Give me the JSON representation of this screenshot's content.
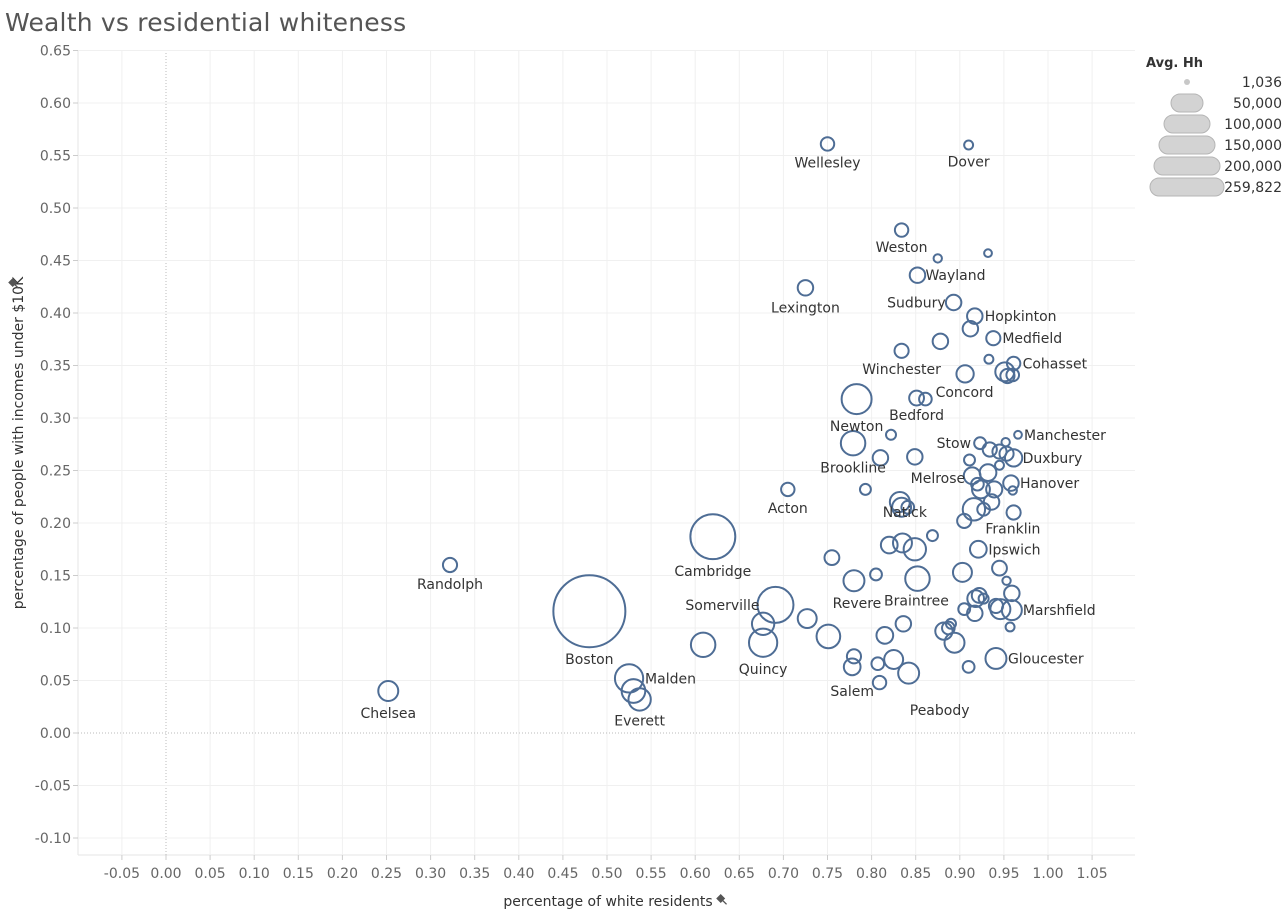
{
  "title": "Wealth vs residential whiteness",
  "chart_data": {
    "type": "scatter",
    "title": "Wealth vs residential whiteness",
    "xlabel": "percentage of white residents",
    "ylabel": "percentage of people with incomes under $10K",
    "xlim": [
      -0.1,
      1.1
    ],
    "ylim": [
      -0.12,
      0.67
    ],
    "x_ticks": [
      "-0.05",
      "0.00",
      "0.05",
      "0.10",
      "0.15",
      "0.20",
      "0.25",
      "0.30",
      "0.35",
      "0.40",
      "0.45",
      "0.50",
      "0.55",
      "0.60",
      "0.65",
      "0.70",
      "0.75",
      "0.80",
      "0.85",
      "0.90",
      "0.95",
      "1.00",
      "1.05"
    ],
    "y_ticks": [
      "0.65",
      "0.60",
      "0.55",
      "0.50",
      "0.45",
      "0.40",
      "0.35",
      "0.30",
      "0.25",
      "0.20",
      "0.15",
      "0.10",
      "0.05",
      "0.00",
      "-0.05",
      "-0.10"
    ],
    "grid": true,
    "mark_color": "#4e6d95",
    "legend": {
      "title": "Avg. Hh",
      "placement": "top-right",
      "entries": [
        "1,036",
        "50,000",
        "100,000",
        "150,000",
        "200,000",
        "259,822"
      ],
      "values": [
        1036,
        50000,
        100000,
        150000,
        200000,
        259822
      ]
    },
    "points": [
      {
        "label": "Wellesley",
        "x": 0.75,
        "y": 0.561,
        "size": 9000
      },
      {
        "label": "Dover",
        "x": 0.91,
        "y": 0.56,
        "size": 4000
      },
      {
        "label": "",
        "x": 0.834,
        "y": 0.479,
        "size": 9000
      },
      {
        "label": "Weston",
        "x": 0.834,
        "y": 0.479,
        "size": 0
      },
      {
        "label": "",
        "x": 0.875,
        "y": 0.452,
        "size": 3500
      },
      {
        "label": "",
        "x": 0.932,
        "y": 0.457,
        "size": 3000
      },
      {
        "label": "Wayland",
        "x": 0.852,
        "y": 0.436,
        "size": 12000
      },
      {
        "label": "Lexington",
        "x": 0.725,
        "y": 0.424,
        "size": 12000
      },
      {
        "label": "Sudbury",
        "x": 0.893,
        "y": 0.41,
        "size": 12000
      },
      {
        "label": "Hopkinton",
        "x": 0.917,
        "y": 0.397,
        "size": 12000
      },
      {
        "label": "",
        "x": 0.912,
        "y": 0.385,
        "size": 12000
      },
      {
        "label": "Medfield",
        "x": 0.938,
        "y": 0.376,
        "size": 10000
      },
      {
        "label": "",
        "x": 0.878,
        "y": 0.373,
        "size": 12000
      },
      {
        "label": "Winchester",
        "x": 0.834,
        "y": 0.364,
        "size": 10000
      },
      {
        "label": "",
        "x": 0.933,
        "y": 0.356,
        "size": 4000
      },
      {
        "label": "Cohasset",
        "x": 0.961,
        "y": 0.352,
        "size": 9000
      },
      {
        "label": "",
        "x": 0.906,
        "y": 0.342,
        "size": 15000
      },
      {
        "label": "",
        "x": 0.951,
        "y": 0.344,
        "size": 18000
      },
      {
        "label": "",
        "x": 0.954,
        "y": 0.34,
        "size": 10000
      },
      {
        "label": "",
        "x": 0.96,
        "y": 0.341,
        "size": 8000
      },
      {
        "label": "Concord",
        "x": 0.851,
        "y": 0.319,
        "size": 11000
      },
      {
        "label": "",
        "x": 0.861,
        "y": 0.318,
        "size": 8000
      },
      {
        "label": "Bedford",
        "x": 0.851,
        "y": 0.319,
        "size": 0
      },
      {
        "label": "Newton",
        "x": 0.783,
        "y": 0.318,
        "size": 45000
      },
      {
        "label": "",
        "x": 0.822,
        "y": 0.284,
        "size": 5000
      },
      {
        "label": "Manchester",
        "x": 0.966,
        "y": 0.284,
        "size": 3000
      },
      {
        "label": "",
        "x": 0.952,
        "y": 0.277,
        "size": 3500
      },
      {
        "label": "Stow",
        "x": 0.923,
        "y": 0.276,
        "size": 7000
      },
      {
        "label": "Brookline",
        "x": 0.779,
        "y": 0.276,
        "size": 30000
      },
      {
        "label": "",
        "x": 0.934,
        "y": 0.27,
        "size": 10000
      },
      {
        "label": "",
        "x": 0.945,
        "y": 0.268,
        "size": 10000
      },
      {
        "label": "",
        "x": 0.953,
        "y": 0.266,
        "size": 10000
      },
      {
        "label": "Duxbury",
        "x": 0.961,
        "y": 0.262,
        "size": 15000
      },
      {
        "label": "",
        "x": 0.849,
        "y": 0.263,
        "size": 12000
      },
      {
        "label": "",
        "x": 0.81,
        "y": 0.262,
        "size": 12000
      },
      {
        "label": "",
        "x": 0.911,
        "y": 0.26,
        "size": 6000
      },
      {
        "label": "",
        "x": 0.945,
        "y": 0.255,
        "size": 4000
      },
      {
        "label": "",
        "x": 0.932,
        "y": 0.248,
        "size": 14000
      },
      {
        "label": "Melrose",
        "x": 0.914,
        "y": 0.245,
        "size": 14000
      },
      {
        "label": "Hanover",
        "x": 0.958,
        "y": 0.238,
        "size": 12000
      },
      {
        "label": "",
        "x": 0.92,
        "y": 0.237,
        "size": 8000
      },
      {
        "label": "",
        "x": 0.939,
        "y": 0.232,
        "size": 13000
      },
      {
        "label": "",
        "x": 0.924,
        "y": 0.232,
        "size": 16000
      },
      {
        "label": "",
        "x": 0.96,
        "y": 0.231,
        "size": 3500
      },
      {
        "label": "Acton",
        "x": 0.705,
        "y": 0.232,
        "size": 9000
      },
      {
        "label": "",
        "x": 0.793,
        "y": 0.232,
        "size": 6000
      },
      {
        "label": "",
        "x": 0.832,
        "y": 0.22,
        "size": 20000
      },
      {
        "label": "",
        "x": 0.834,
        "y": 0.215,
        "size": 18000
      },
      {
        "label": "",
        "x": 0.841,
        "y": 0.215,
        "size": 8000
      },
      {
        "label": "",
        "x": 0.936,
        "y": 0.22,
        "size": 12000
      },
      {
        "label": "",
        "x": 0.916,
        "y": 0.213,
        "size": 25000
      },
      {
        "label": "",
        "x": 0.927,
        "y": 0.213,
        "size": 8000
      },
      {
        "label": "",
        "x": 0.961,
        "y": 0.21,
        "size": 10000
      },
      {
        "label": "",
        "x": 0.905,
        "y": 0.202,
        "size": 10000
      },
      {
        "label": "Franklin",
        "x": 0.916,
        "y": 0.213,
        "size": 0
      },
      {
        "label": "Natick",
        "x": 0.832,
        "y": 0.22,
        "size": 0
      },
      {
        "label": "",
        "x": 0.869,
        "y": 0.188,
        "size": 6000
      },
      {
        "label": "Cambridge",
        "x": 0.62,
        "y": 0.187,
        "size": 101000
      },
      {
        "label": "",
        "x": 0.835,
        "y": 0.181,
        "size": 18000
      },
      {
        "label": "",
        "x": 0.82,
        "y": 0.179,
        "size": 14000
      },
      {
        "label": "",
        "x": 0.849,
        "y": 0.175,
        "size": 25000
      },
      {
        "label": "Ipswich",
        "x": 0.921,
        "y": 0.175,
        "size": 14000
      },
      {
        "label": "",
        "x": 0.755,
        "y": 0.167,
        "size": 11000
      },
      {
        "label": "Randolph",
        "x": 0.322,
        "y": 0.16,
        "size": 10000
      },
      {
        "label": "",
        "x": 0.945,
        "y": 0.157,
        "size": 11000
      },
      {
        "label": "",
        "x": 0.903,
        "y": 0.153,
        "size": 18000
      },
      {
        "label": "",
        "x": 0.805,
        "y": 0.151,
        "size": 7000
      },
      {
        "label": "",
        "x": 0.852,
        "y": 0.147,
        "size": 30000
      },
      {
        "label": "",
        "x": 0.78,
        "y": 0.145,
        "size": 22000
      },
      {
        "label": "",
        "x": 0.953,
        "y": 0.145,
        "size": 3500
      },
      {
        "label": "",
        "x": 0.959,
        "y": 0.133,
        "size": 12000
      },
      {
        "label": "Braintree",
        "x": 0.852,
        "y": 0.147,
        "size": 0
      },
      {
        "label": "Revere",
        "x": 0.78,
        "y": 0.145,
        "size": 0
      },
      {
        "label": "",
        "x": 0.918,
        "y": 0.128,
        "size": 14000
      },
      {
        "label": "",
        "x": 0.922,
        "y": 0.131,
        "size": 11000
      },
      {
        "label": "",
        "x": 0.927,
        "y": 0.128,
        "size": 5000
      },
      {
        "label": "Somerville",
        "x": 0.691,
        "y": 0.122,
        "size": 65000
      },
      {
        "label": "",
        "x": 0.941,
        "y": 0.121,
        "size": 10000
      },
      {
        "label": "",
        "x": 0.946,
        "y": 0.118,
        "size": 20000
      },
      {
        "label": "Marshfield",
        "x": 0.959,
        "y": 0.117,
        "size": 20000
      },
      {
        "label": "",
        "x": 0.905,
        "y": 0.118,
        "size": 7000
      },
      {
        "label": "",
        "x": 0.917,
        "y": 0.114,
        "size": 12000
      },
      {
        "label": "Boston",
        "x": 0.48,
        "y": 0.116,
        "size": 259822
      },
      {
        "label": "",
        "x": 0.727,
        "y": 0.109,
        "size": 18000
      },
      {
        "label": "",
        "x": 0.677,
        "y": 0.104,
        "size": 25000
      },
      {
        "label": "",
        "x": 0.836,
        "y": 0.104,
        "size": 12000
      },
      {
        "label": "",
        "x": 0.89,
        "y": 0.104,
        "size": 5000
      },
      {
        "label": "",
        "x": 0.887,
        "y": 0.1,
        "size": 8000
      },
      {
        "label": "",
        "x": 0.957,
        "y": 0.101,
        "size": 4000
      },
      {
        "label": "",
        "x": 0.882,
        "y": 0.097,
        "size": 15000
      },
      {
        "label": "",
        "x": 0.815,
        "y": 0.093,
        "size": 14000
      },
      {
        "label": "",
        "x": 0.751,
        "y": 0.092,
        "size": 28000
      },
      {
        "label": "Quincy",
        "x": 0.677,
        "y": 0.086,
        "size": 40000
      },
      {
        "label": "",
        "x": 0.609,
        "y": 0.084,
        "size": 30000
      },
      {
        "label": "",
        "x": 0.894,
        "y": 0.086,
        "size": 20000
      },
      {
        "label": "",
        "x": 0.78,
        "y": 0.073,
        "size": 10000
      },
      {
        "label": "",
        "x": 0.825,
        "y": 0.07,
        "size": 18000
      },
      {
        "label": "Gloucester",
        "x": 0.941,
        "y": 0.071,
        "size": 22000
      },
      {
        "label": "",
        "x": 0.807,
        "y": 0.066,
        "size": 8000
      },
      {
        "label": "",
        "x": 0.778,
        "y": 0.063,
        "size": 14000
      },
      {
        "label": "",
        "x": 0.91,
        "y": 0.063,
        "size": 7000
      },
      {
        "label": "",
        "x": 0.842,
        "y": 0.057,
        "size": 22000
      },
      {
        "label": "",
        "x": 0.525,
        "y": 0.052,
        "size": 40000
      },
      {
        "label": "Malden",
        "x": 0.525,
        "y": 0.052,
        "size": 0
      },
      {
        "label": "",
        "x": 0.809,
        "y": 0.048,
        "size": 9000
      },
      {
        "label": "Salem",
        "x": 0.778,
        "y": 0.063,
        "size": 0
      },
      {
        "label": "Peabody",
        "x": 0.842,
        "y": 0.057,
        "size": 0
      },
      {
        "label": "",
        "x": 0.53,
        "y": 0.04,
        "size": 28000
      },
      {
        "label": "Chelsea",
        "x": 0.252,
        "y": 0.04,
        "size": 20000
      },
      {
        "label": "Everett",
        "x": 0.537,
        "y": 0.032,
        "size": 25000
      }
    ]
  }
}
